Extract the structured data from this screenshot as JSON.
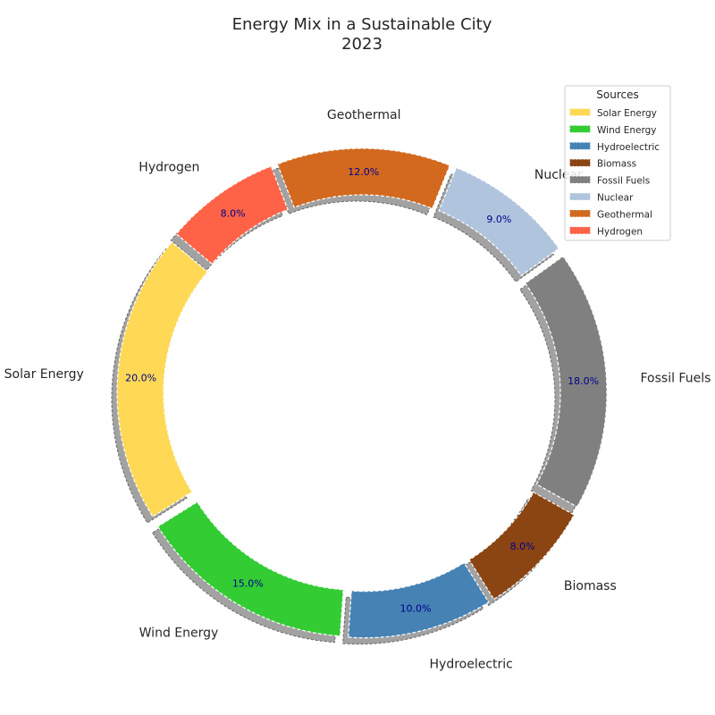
{
  "chart_data": {
    "type": "pie",
    "variant": "donut",
    "title_lines": [
      "Energy Mix in a Sustainable City",
      "2023"
    ],
    "categories": [
      "Solar Energy",
      "Wind Energy",
      "Hydroelectric",
      "Biomass",
      "Fossil Fuels",
      "Nuclear",
      "Geothermal",
      "Hydrogen"
    ],
    "values": [
      20,
      15,
      10,
      8,
      18,
      9,
      12,
      8
    ],
    "percent_labels": [
      "20.0%",
      "15.0%",
      "10.0%",
      "8.0%",
      "18.0%",
      "9.0%",
      "12.0%",
      "8.0%"
    ],
    "colors": [
      "#FFD955",
      "#33CC33",
      "#4682B4",
      "#8B4513",
      "#808080",
      "#B0C4DE",
      "#D2691E",
      "#FF6347"
    ],
    "start_angle_deg": 140,
    "direction": "counterclockwise",
    "exploded": true,
    "shadow": true,
    "legend": {
      "title": "Sources",
      "placement": "top-right",
      "entries": [
        "Solar Energy",
        "Wind Energy",
        "Hydroelectric",
        "Biomass",
        "Fossil Fuels",
        "Nuclear",
        "Geothermal",
        "Hydrogen"
      ]
    }
  }
}
